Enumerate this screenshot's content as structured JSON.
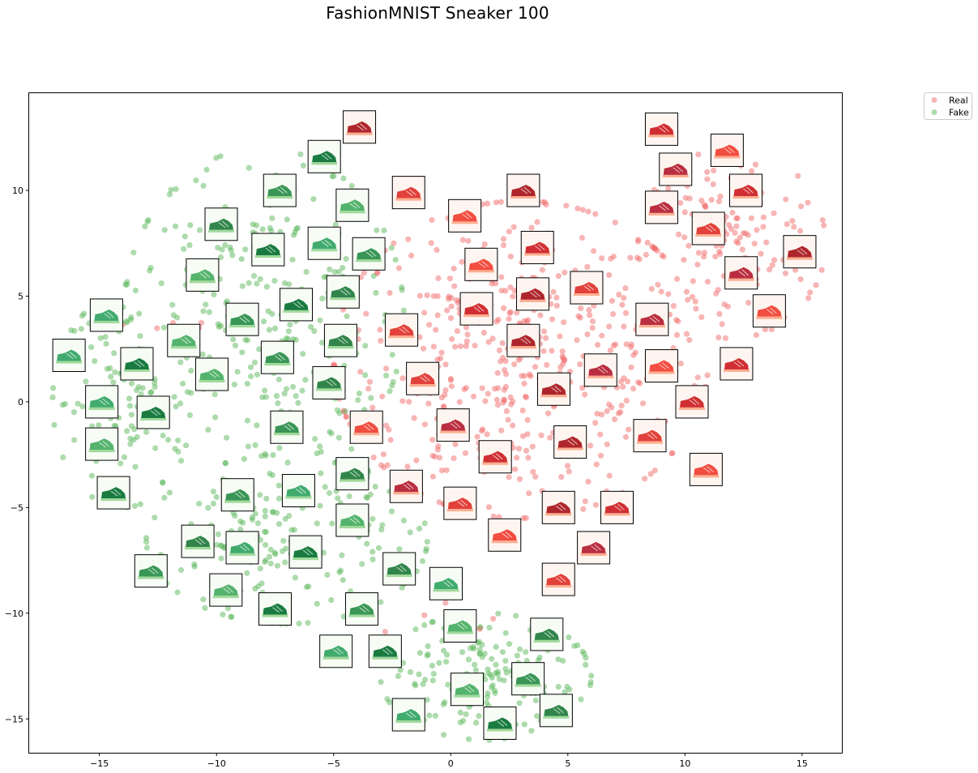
{
  "chart_data": {
    "type": "scatter",
    "title": "FashionMNIST Sneaker 100",
    "xlabel": "",
    "ylabel": "",
    "xlim": [
      -18,
      16.7
    ],
    "ylim": [
      -16.6,
      14.6
    ],
    "xticks": [
      -15,
      -10,
      -5,
      0,
      5,
      10,
      15
    ],
    "xtick_labels": [
      "−15",
      "−10",
      "−5",
      "0",
      "5",
      "10",
      "15"
    ],
    "yticks": [
      10,
      5,
      0,
      -5,
      -10,
      -15
    ],
    "ytick_labels": [
      "10",
      "5",
      "0",
      "−5",
      "−10",
      "−15"
    ],
    "grid": false,
    "legend_position": "upper-right-outside",
    "series": [
      {
        "name": "Real",
        "color": "#f26b6b",
        "thumbnail_cmap": "Reds",
        "cluster_regions": [
          {
            "cx": 3.0,
            "cy": 2.0,
            "rx": 8.0,
            "ry": 7.5,
            "n": 520
          },
          {
            "cx": 12.0,
            "cy": 7.5,
            "rx": 4.0,
            "ry": 4.5,
            "n": 150
          },
          {
            "cx": 0.5,
            "cy": -11.0,
            "rx": 3.5,
            "ry": 2.5,
            "n": 10
          },
          {
            "cx": -12.0,
            "cy": 3.5,
            "rx": 2.0,
            "ry": 2.0,
            "n": 6
          }
        ],
        "thumbnails": [
          [
            -3.9,
            13.0
          ],
          [
            9.0,
            12.9
          ],
          [
            11.8,
            11.9
          ],
          [
            9.6,
            11.0
          ],
          [
            -1.8,
            9.9
          ],
          [
            3.1,
            10.0
          ],
          [
            12.6,
            10.0
          ],
          [
            0.6,
            8.8
          ],
          [
            9.0,
            9.2
          ],
          [
            11.0,
            8.2
          ],
          [
            14.9,
            7.1
          ],
          [
            3.7,
            7.3
          ],
          [
            1.3,
            6.5
          ],
          [
            12.4,
            6.1
          ],
          [
            5.8,
            5.4
          ],
          [
            3.5,
            5.1
          ],
          [
            1.1,
            4.4
          ],
          [
            13.6,
            4.3
          ],
          [
            8.6,
            3.9
          ],
          [
            -2.1,
            3.4
          ],
          [
            3.1,
            2.9
          ],
          [
            12.2,
            1.8
          ],
          [
            9.0,
            1.7
          ],
          [
            6.4,
            1.5
          ],
          [
            -1.2,
            1.1
          ],
          [
            4.4,
            0.6
          ],
          [
            10.3,
            0.0
          ],
          [
            -3.6,
            -1.2
          ],
          [
            0.1,
            -1.1
          ],
          [
            8.5,
            -1.6
          ],
          [
            5.1,
            -1.9
          ],
          [
            1.9,
            -2.6
          ],
          [
            10.9,
            -3.2
          ],
          [
            -1.9,
            -4.0
          ],
          [
            0.4,
            -4.8
          ],
          [
            4.6,
            -5.0
          ],
          [
            7.1,
            -5.0
          ],
          [
            2.3,
            -6.3
          ],
          [
            6.1,
            -6.9
          ],
          [
            4.6,
            -8.4
          ]
        ]
      },
      {
        "name": "Fake",
        "color": "#5cb85c",
        "thumbnail_cmap": "Greens",
        "cluster_regions": [
          {
            "cx": -8.0,
            "cy": 4.0,
            "rx": 6.0,
            "ry": 8.0,
            "n": 290
          },
          {
            "cx": -14.0,
            "cy": 0.0,
            "rx": 3.0,
            "ry": 5.0,
            "n": 110
          },
          {
            "cx": -7.0,
            "cy": -6.5,
            "rx": 6.0,
            "ry": 4.0,
            "n": 200
          },
          {
            "cx": 1.5,
            "cy": -13.0,
            "rx": 4.5,
            "ry": 3.0,
            "n": 180
          }
        ],
        "thumbnails": [
          [
            -5.4,
            11.6
          ],
          [
            -7.3,
            10.0
          ],
          [
            -4.2,
            9.3
          ],
          [
            -9.8,
            8.4
          ],
          [
            -5.4,
            7.5
          ],
          [
            -7.8,
            7.2
          ],
          [
            -3.5,
            7.0
          ],
          [
            -10.6,
            6.0
          ],
          [
            -4.6,
            5.2
          ],
          [
            -14.7,
            4.1
          ],
          [
            -6.6,
            4.6
          ],
          [
            -8.9,
            3.9
          ],
          [
            -11.4,
            2.9
          ],
          [
            -4.7,
            2.9
          ],
          [
            -16.3,
            2.2
          ],
          [
            -13.4,
            1.8
          ],
          [
            -7.4,
            2.1
          ],
          [
            -10.2,
            1.3
          ],
          [
            -5.2,
            0.9
          ],
          [
            -14.9,
            0.0
          ],
          [
            -12.7,
            -0.5
          ],
          [
            -7.0,
            -1.2
          ],
          [
            -14.9,
            -2.0
          ],
          [
            -4.2,
            -3.4
          ],
          [
            -6.5,
            -4.2
          ],
          [
            -14.4,
            -4.3
          ],
          [
            -9.1,
            -4.4
          ],
          [
            -4.2,
            -5.6
          ],
          [
            -10.8,
            -6.6
          ],
          [
            -8.9,
            -6.9
          ],
          [
            -6.2,
            -7.1
          ],
          [
            -12.8,
            -8.0
          ],
          [
            -9.6,
            -8.9
          ],
          [
            -2.2,
            -7.9
          ],
          [
            -0.2,
            -8.6
          ],
          [
            -7.5,
            -9.8
          ],
          [
            -3.8,
            -9.8
          ],
          [
            0.4,
            -10.6
          ],
          [
            4.1,
            -11.0
          ],
          [
            -4.9,
            -11.8
          ],
          [
            -2.8,
            -11.8
          ],
          [
            3.3,
            -13.1
          ],
          [
            0.7,
            -13.6
          ],
          [
            4.5,
            -14.6
          ],
          [
            -1.8,
            -14.8
          ],
          [
            2.1,
            -15.2
          ]
        ]
      }
    ]
  }
}
